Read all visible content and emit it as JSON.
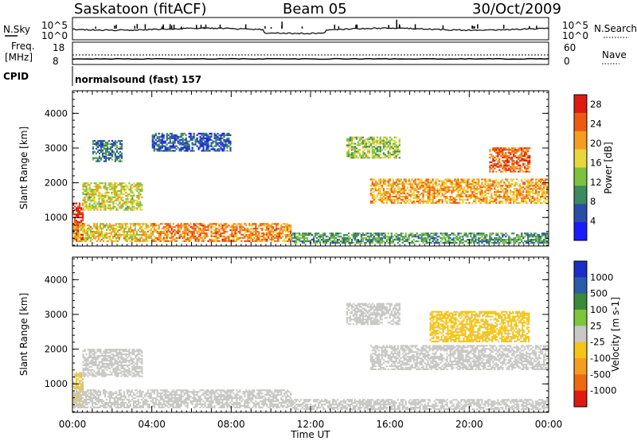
{
  "header": {
    "station": "Saskatoon (fitACF)",
    "beam": "Beam 05",
    "date": "30/Oct/2009"
  },
  "status_panel": {
    "nsky_label": "N.Sky",
    "nsky_ticks": [
      "10^5",
      "10^0"
    ],
    "nsearch_label": "N.Search",
    "nsearch_ticks": [
      "10^5",
      "10^0"
    ],
    "freq_label": "Freq.",
    "freq_unit": "[MHz]",
    "freq_ticks": [
      "18",
      "8"
    ],
    "nave_label": "Nave",
    "nave_ticks": [
      "60",
      "0"
    ],
    "cpid_label": "CPID",
    "cpid_value": "normalsound (fast) 157"
  },
  "colors": {
    "power_scale": [
      "#1a1aff",
      "#2a4da8",
      "#3c8a5e",
      "#7dc23e",
      "#e8d73a",
      "#f59d20",
      "#ee5a12",
      "#e01a10"
    ],
    "velocity_scale": [
      "#1a2fc8",
      "#2a5da6",
      "#3a8a3a",
      "#7cc63a",
      "#c8c8c4",
      "#f5c518",
      "#f59d20",
      "#ee6a12",
      "#e01a10"
    ]
  },
  "chart_data": [
    {
      "type": "heatmap",
      "title": "",
      "xlabel": "Time UT",
      "ylabel": "Slant Range [km]",
      "x_ticks": [
        "00:00",
        "04:00",
        "08:00",
        "12:00",
        "16:00",
        "20:00",
        "00:00"
      ],
      "y_ticks": [
        1000,
        2000,
        3000,
        4000
      ],
      "xlim_hours": [
        0,
        24
      ],
      "ylim_km": [
        180,
        4650
      ],
      "colorbar": {
        "label": "Power [dB]",
        "ticks": [
          4,
          8,
          12,
          16,
          20,
          24,
          28
        ],
        "range": [
          0,
          30
        ]
      },
      "echo_regions": [
        {
          "t": [
            0.0,
            0.5
          ],
          "range": [
            350,
            1400
          ],
          "value": 28
        },
        {
          "t": [
            0.0,
            4.0
          ],
          "range": [
            300,
            800
          ],
          "value": 18
        },
        {
          "t": [
            4.0,
            11.0
          ],
          "range": [
            300,
            800
          ],
          "value": 22
        },
        {
          "t": [
            11.0,
            24.0
          ],
          "range": [
            250,
            550
          ],
          "value": 10
        },
        {
          "t": [
            0.5,
            3.5
          ],
          "range": [
            1200,
            2000
          ],
          "value": 16
        },
        {
          "t": [
            1.0,
            2.5
          ],
          "range": [
            2600,
            3200
          ],
          "value": 8
        },
        {
          "t": [
            4.0,
            8.0
          ],
          "range": [
            2900,
            3400
          ],
          "value": 6
        },
        {
          "t": [
            13.8,
            16.5
          ],
          "range": [
            2700,
            3300
          ],
          "value": 14
        },
        {
          "t": [
            15.0,
            24.0
          ],
          "range": [
            1400,
            2100
          ],
          "value": 20
        },
        {
          "t": [
            21.0,
            23.0
          ],
          "range": [
            2300,
            3000
          ],
          "value": 24
        }
      ]
    },
    {
      "type": "heatmap",
      "title": "",
      "xlabel": "Time UT",
      "ylabel": "Slant Range [km]",
      "x_ticks": [
        "00:00",
        "04:00",
        "08:00",
        "12:00",
        "16:00",
        "20:00",
        "00:00"
      ],
      "y_ticks": [
        1000,
        2000,
        3000,
        4000
      ],
      "xlim_hours": [
        0,
        24
      ],
      "ylim_km": [
        180,
        4650
      ],
      "colorbar": {
        "label": "Velocity [m s-1]",
        "ticks": [
          1000,
          500,
          100,
          25,
          -25,
          -100,
          -500,
          -1000
        ],
        "range": [
          -1200,
          1200
        ]
      },
      "echo_regions": [
        {
          "t": [
            0.0,
            0.5
          ],
          "range": [
            350,
            1300
          ],
          "value": -150
        },
        {
          "t": [
            0.0,
            11.0
          ],
          "range": [
            300,
            800
          ],
          "value": 0
        },
        {
          "t": [
            11.0,
            24.0
          ],
          "range": [
            250,
            550
          ],
          "value": 0
        },
        {
          "t": [
            0.5,
            3.5
          ],
          "range": [
            1200,
            2000
          ],
          "value": 0
        },
        {
          "t": [
            13.8,
            16.5
          ],
          "range": [
            2700,
            3300
          ],
          "value": 0
        },
        {
          "t": [
            15.0,
            24.0
          ],
          "range": [
            1400,
            2100
          ],
          "value": 0
        },
        {
          "t": [
            18.0,
            23.0
          ],
          "range": [
            2200,
            3100
          ],
          "value": -200
        }
      ]
    }
  ]
}
